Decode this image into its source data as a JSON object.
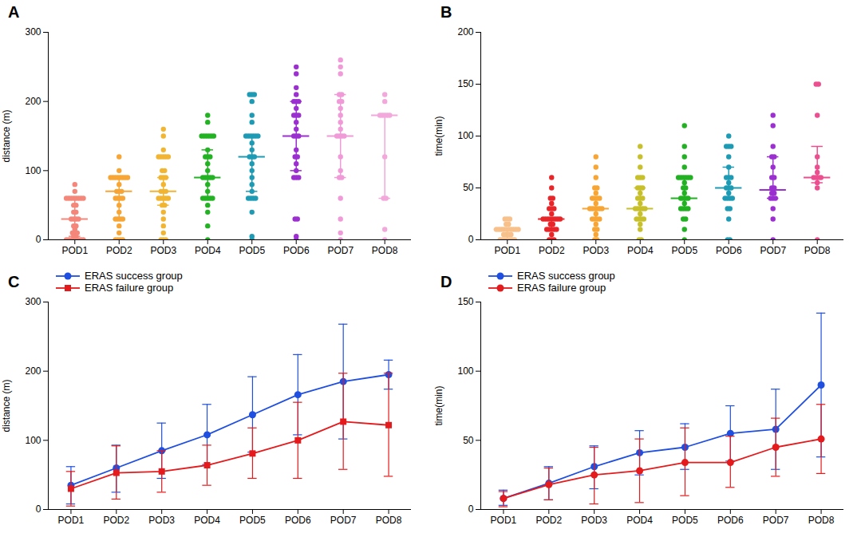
{
  "chart_data": [
    {
      "type": "scatter",
      "title": "A",
      "y_label": "distance (m)",
      "categories": [
        "POD1",
        "POD2",
        "POD3",
        "POD4",
        "POD5",
        "POD6",
        "POD7",
        "POD8"
      ],
      "colors": [
        "#f4877a",
        "#f7a535",
        "#f2b531",
        "#22b322",
        "#1d9bb5",
        "#9b2fd0",
        "#f09ad8",
        "#f3a8dc"
      ],
      "values": [
        [
          0,
          0,
          0,
          0,
          0,
          0,
          0,
          0,
          5,
          5,
          10,
          10,
          10,
          15,
          20,
          20,
          30,
          30,
          30,
          30,
          40,
          40,
          50,
          50,
          60,
          60,
          60,
          60,
          60,
          60,
          60,
          60,
          70,
          80
        ],
        [
          0,
          0,
          0,
          0,
          10,
          20,
          30,
          30,
          30,
          30,
          40,
          50,
          60,
          60,
          60,
          60,
          70,
          70,
          70,
          80,
          90,
          90,
          90,
          90,
          90,
          90,
          90,
          90,
          100,
          120
        ],
        [
          0,
          0,
          0,
          10,
          20,
          30,
          40,
          50,
          50,
          60,
          60,
          60,
          60,
          60,
          70,
          70,
          70,
          80,
          90,
          90,
          90,
          100,
          100,
          120,
          120,
          120,
          120,
          120,
          130,
          150,
          160
        ],
        [
          0,
          20,
          40,
          50,
          60,
          60,
          60,
          60,
          60,
          70,
          80,
          90,
          90,
          90,
          90,
          90,
          100,
          110,
          120,
          120,
          120,
          130,
          150,
          150,
          150,
          150,
          150,
          150,
          170,
          180
        ],
        [
          0,
          5,
          40,
          60,
          60,
          60,
          60,
          70,
          80,
          90,
          100,
          110,
          120,
          120,
          120,
          130,
          140,
          150,
          150,
          150,
          150,
          150,
          150,
          170,
          180,
          200,
          210,
          210,
          210
        ],
        [
          0,
          5,
          30,
          30,
          90,
          90,
          90,
          100,
          110,
          120,
          120,
          130,
          150,
          150,
          150,
          160,
          170,
          180,
          180,
          180,
          190,
          200,
          200,
          200,
          210,
          220,
          240,
          250
        ],
        [
          0,
          10,
          30,
          60,
          90,
          90,
          100,
          120,
          150,
          150,
          150,
          150,
          160,
          170,
          180,
          190,
          200,
          200,
          210,
          210,
          240,
          250,
          260
        ],
        [
          0,
          15,
          60,
          60,
          120,
          180,
          180,
          180,
          180,
          180,
          200,
          210
        ]
      ],
      "median": [
        30,
        70,
        70,
        90,
        120,
        150,
        150,
        180
      ],
      "lower": [
        5,
        30,
        50,
        60,
        70,
        100,
        90,
        60
      ],
      "upper": [
        60,
        90,
        90,
        130,
        150,
        200,
        210,
        180
      ],
      "ylim": [
        0,
        300
      ],
      "yticks": [
        0,
        100,
        200,
        300
      ]
    },
    {
      "type": "scatter",
      "title": "B",
      "y_label": "time(min)",
      "categories": [
        "POD1",
        "POD2",
        "POD3",
        "POD4",
        "POD5",
        "POD6",
        "POD7",
        "POD8"
      ],
      "colors": [
        "#f8c08a",
        "#e8262a",
        "#f7a535",
        "#c8c02a",
        "#22b122",
        "#1d9bb5",
        "#9b2fd0",
        "#ec4f8f"
      ],
      "values": [
        [
          0,
          0,
          0,
          0,
          0,
          0,
          0,
          5,
          5,
          5,
          5,
          10,
          10,
          10,
          10,
          10,
          10,
          10,
          10,
          10,
          10,
          15,
          15,
          20,
          20,
          20
        ],
        [
          0,
          0,
          0,
          5,
          10,
          10,
          10,
          10,
          10,
          15,
          15,
          20,
          20,
          20,
          20,
          20,
          20,
          20,
          20,
          25,
          30,
          30,
          30,
          35,
          40,
          40,
          50,
          60
        ],
        [
          0,
          0,
          5,
          10,
          10,
          15,
          20,
          20,
          20,
          20,
          25,
          30,
          30,
          30,
          30,
          30,
          30,
          35,
          40,
          40,
          40,
          40,
          45,
          50,
          50,
          60,
          70,
          80
        ],
        [
          0,
          0,
          10,
          15,
          20,
          20,
          20,
          20,
          25,
          30,
          30,
          30,
          30,
          30,
          35,
          40,
          40,
          40,
          45,
          50,
          50,
          50,
          60,
          60,
          60,
          70,
          80,
          90
        ],
        [
          0,
          10,
          20,
          20,
          30,
          30,
          30,
          30,
          35,
          40,
          40,
          40,
          40,
          45,
          50,
          50,
          55,
          60,
          60,
          60,
          60,
          60,
          60,
          70,
          80,
          90,
          110
        ],
        [
          0,
          0,
          20,
          30,
          30,
          40,
          40,
          40,
          40,
          45,
          50,
          50,
          50,
          55,
          60,
          60,
          60,
          70,
          80,
          90,
          90,
          90,
          100
        ],
        [
          0,
          20,
          30,
          40,
          40,
          40,
          45,
          45,
          50,
          50,
          60,
          60,
          70,
          80,
          80,
          90,
          110,
          120
        ],
        [
          0,
          50,
          55,
          60,
          60,
          60,
          60,
          65,
          70,
          80,
          120,
          150,
          150
        ]
      ],
      "median": [
        10,
        20,
        30,
        30,
        40,
        50,
        48,
        60
      ],
      "lower": [
        0,
        10,
        20,
        20,
        30,
        40,
        40,
        55
      ],
      "upper": [
        10,
        20,
        40,
        50,
        60,
        70,
        80,
        90
      ],
      "ylim": [
        0,
        200
      ],
      "yticks": [
        0,
        50,
        100,
        150,
        200
      ]
    },
    {
      "type": "line",
      "title": "C",
      "y_label": "distance (m)",
      "legend": "top-left",
      "categories": [
        "POD1",
        "POD2",
        "POD3",
        "POD4",
        "POD5",
        "POD6",
        "POD7",
        "POD8"
      ],
      "series": [
        {
          "name": "ERAS success group",
          "color": "#1f4fe0",
          "marker": "circle",
          "values": [
            35,
            60,
            85,
            108,
            137,
            166,
            185,
            195
          ],
          "lower": [
            8,
            25,
            45,
            65,
            83,
            108,
            102,
            174
          ],
          "upper": [
            62,
            93,
            125,
            152,
            192,
            224,
            268,
            216
          ]
        },
        {
          "name": "ERAS failure group",
          "color": "#e41a1c",
          "marker": "square",
          "values": [
            30,
            53,
            55,
            64,
            81,
            100,
            127,
            122
          ],
          "lower": [
            5,
            15,
            25,
            35,
            45,
            45,
            58,
            48
          ],
          "upper": [
            55,
            92,
            85,
            93,
            118,
            155,
            197,
            197
          ]
        }
      ],
      "ylim": [
        0,
        300
      ],
      "yticks": [
        0,
        100,
        200,
        300
      ]
    },
    {
      "type": "line",
      "title": "D",
      "y_label": "time(min)",
      "legend": "top-left",
      "categories": [
        "POD1",
        "POD2",
        "POD3",
        "POD4",
        "POD5",
        "POD6",
        "POD7",
        "POD8"
      ],
      "series": [
        {
          "name": "ERAS success group",
          "color": "#1f4fe0",
          "marker": "circle",
          "values": [
            8,
            19,
            31,
            41,
            45,
            55,
            58,
            90
          ],
          "lower": [
            3,
            7,
            15,
            25,
            29,
            35,
            29,
            38
          ],
          "upper": [
            14,
            31,
            46,
            57,
            62,
            75,
            87,
            142
          ]
        },
        {
          "name": "ERAS failure group",
          "color": "#e41a1c",
          "marker": "circle",
          "values": [
            8,
            18,
            25,
            28,
            34,
            34,
            45,
            51
          ],
          "lower": [
            2,
            7,
            4,
            5,
            10,
            16,
            24,
            26
          ],
          "upper": [
            13,
            30,
            45,
            51,
            59,
            53,
            66,
            76
          ]
        }
      ],
      "ylim": [
        0,
        150
      ],
      "yticks": [
        0,
        50,
        100,
        150
      ]
    }
  ]
}
